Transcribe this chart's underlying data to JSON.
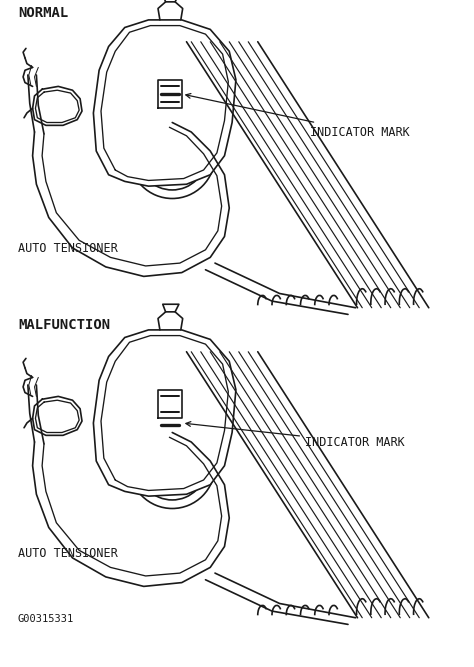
{
  "background_color": "#ffffff",
  "line_color": "#1a1a1a",
  "line_width": 1.2,
  "fig_width": 4.74,
  "fig_height": 6.67,
  "dpi": 100,
  "labels": {
    "normal": "NORMAL",
    "malfunction": "MALFUNCTION",
    "indicator_mark": "INDICATOR MARK",
    "auto_tensioner": "AUTO TENSIONER",
    "part_number": "G00315331"
  },
  "label_fontsize": 9,
  "label_font": "monospace"
}
